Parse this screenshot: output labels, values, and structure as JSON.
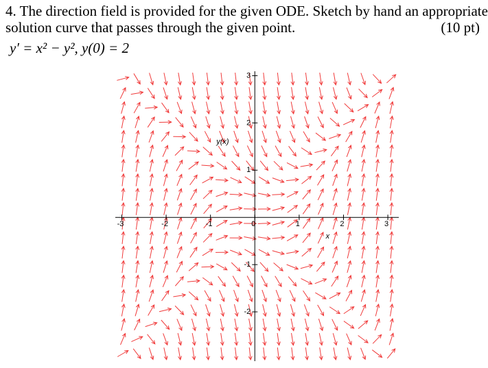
{
  "question": {
    "line1": "4. The direction field is provided for the given ODE. Sketch by hand an appropriate",
    "line2": "solution curve that passes through the given point.",
    "points": "(10 pt)",
    "equation": "y′ =  x² − y²,  y(0) = 2"
  },
  "chart_data": {
    "type": "direction-field",
    "xlim": [
      -3.1,
      3.2
    ],
    "ylim": [
      -3,
      3.05
    ],
    "xticks": [
      -3,
      -2,
      -1,
      0,
      1,
      2,
      3
    ],
    "yticks": [
      -2,
      -1,
      1,
      2,
      3
    ],
    "xlabel": "x",
    "ylabel": "y(x)",
    "color": "#f03a3a"
  }
}
